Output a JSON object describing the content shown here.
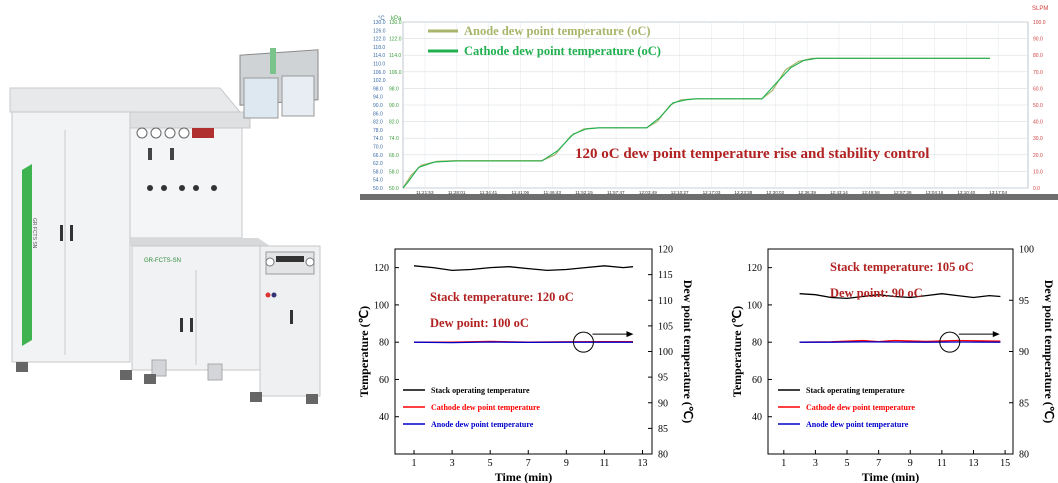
{
  "machine": {
    "brand_front": "GR-FCTS-SN",
    "brand_side": "GR FCTS SN"
  },
  "chart_data": [
    {
      "type": "line",
      "title": "120 oC dew point temperature rise and stability control",
      "left_axis_unit_1": "°C",
      "left_axis_unit_2": "kPa",
      "right_axis_unit": "SLPM",
      "left_ticks": [
        "50.0",
        "54.0",
        "58.0",
        "62.0",
        "66.0",
        "70.0",
        "74.0",
        "78.0",
        "82.0",
        "86.0",
        "90.0",
        "94.0",
        "98.0",
        "102.0",
        "106.0",
        "110.0",
        "114.0",
        "118.0",
        "122.0",
        "126.0",
        "130.0"
      ],
      "left_ticks2": [
        "50.0",
        "58.0",
        "66.0",
        "74.0",
        "82.0",
        "90.0",
        "98.0",
        "106.0",
        "114.0",
        "122.0",
        "130.0"
      ],
      "right_ticks": [
        "0.0",
        "10.0",
        "20.0",
        "30.0",
        "40.0",
        "50.0",
        "60.0",
        "70.0",
        "80.0",
        "90.0",
        "100.0"
      ],
      "x_ticks": [
        "11:21:53",
        "11:28:01",
        "11:34:41",
        "11:41:06",
        "11:46:43",
        "11:52:15",
        "11:57:47",
        "12:03:49",
        "12:10:27",
        "12:17:03",
        "12:23:38",
        "12:30:02",
        "12:36:39",
        "12:43:14",
        "12:49:58",
        "12:57:36",
        "13:04:16",
        "13:10:40",
        "13:17:04"
      ],
      "ylim": [
        50,
        130
      ],
      "series": [
        {
          "name": "Anode dew point temperature (oC)",
          "color": "#a7b66a",
          "points": [
            [
              0,
              50
            ],
            [
              0.3,
              56
            ],
            [
              0.7,
              61
            ],
            [
              1.3,
              62.8
            ],
            [
              2,
              63.2
            ],
            [
              5.3,
              63.2
            ],
            [
              5.8,
              66
            ],
            [
              6.4,
              75
            ],
            [
              6.9,
              78.5
            ],
            [
              7.4,
              79
            ],
            [
              9.3,
              79
            ],
            [
              9.7,
              82
            ],
            [
              10.2,
              90
            ],
            [
              10.6,
              92.5
            ],
            [
              11.1,
              93
            ],
            [
              13.7,
              93
            ],
            [
              14.1,
              97
            ],
            [
              14.6,
              107
            ],
            [
              15.1,
              111
            ],
            [
              15.6,
              112.5
            ],
            [
              22.4,
              112.5
            ]
          ]
        },
        {
          "name": "Cathode dew point temperature (oC)",
          "color": "#20b050",
          "points": [
            [
              0,
              50
            ],
            [
              0.2,
              53
            ],
            [
              0.6,
              60
            ],
            [
              1.2,
              62.5
            ],
            [
              2,
              63
            ],
            [
              5.3,
              63
            ],
            [
              5.9,
              68
            ],
            [
              6.5,
              76
            ],
            [
              7.0,
              78.5
            ],
            [
              7.5,
              79
            ],
            [
              9.3,
              79
            ],
            [
              9.8,
              84
            ],
            [
              10.3,
              91
            ],
            [
              10.8,
              92.5
            ],
            [
              11.2,
              93
            ],
            [
              13.7,
              93
            ],
            [
              14.2,
              100
            ],
            [
              14.8,
              108
            ],
            [
              15.3,
              111.5
            ],
            [
              15.8,
              112.5
            ],
            [
              22.4,
              112.5
            ]
          ]
        }
      ]
    },
    {
      "type": "line",
      "xlabel": "Time (min)",
      "ylabel": "Temperature (℃)",
      "y2label": "Dew point temperature (℃)",
      "xlim": [
        0,
        13.5
      ],
      "ylim": [
        20,
        130
      ],
      "y2lim": [
        80,
        120
      ],
      "x_ticks": [
        "1",
        "3",
        "5",
        "7",
        "9",
        "11",
        "13"
      ],
      "y_ticks": [
        "40",
        "60",
        "80",
        "100",
        "120"
      ],
      "y2_ticks": [
        "80",
        "85",
        "90",
        "95",
        "100",
        "105",
        "110",
        "115",
        "120"
      ],
      "annotations": [
        "Stack temperature: 120 oC",
        "Dew point: 100 oC"
      ],
      "series": [
        {
          "name": "Stack operating temperature",
          "color": "#000000",
          "points": [
            [
              1,
              121
            ],
            [
              2,
              120
            ],
            [
              3,
              118.5
            ],
            [
              4,
              119
            ],
            [
              5,
              120
            ],
            [
              6,
              120.5
            ],
            [
              7,
              119.5
            ],
            [
              8,
              118.5
            ],
            [
              9,
              119
            ],
            [
              10,
              120
            ],
            [
              11,
              121
            ],
            [
              12,
              120
            ],
            [
              12.5,
              120.5
            ]
          ]
        },
        {
          "name": "Cathode dew point temperature",
          "color": "#ff0000",
          "points": [
            [
              1,
              80
            ],
            [
              3,
              80
            ],
            [
              5,
              80.4
            ],
            [
              7,
              80
            ],
            [
              9,
              80.2
            ],
            [
              11,
              80.3
            ],
            [
              12.5,
              80.3
            ]
          ]
        },
        {
          "name": "Anode dew point temperature",
          "color": "#0000cc",
          "points": [
            [
              1,
              80
            ],
            [
              3,
              79.8
            ],
            [
              5,
              80.1
            ],
            [
              7,
              79.9
            ],
            [
              9,
              80
            ],
            [
              11,
              80
            ],
            [
              12.5,
              80
            ]
          ]
        }
      ]
    },
    {
      "type": "line",
      "xlabel": "Time (min)",
      "ylabel": "Temperature (℃)",
      "y2label": "Dew point temperature (℃)",
      "xlim": [
        0,
        15.5
      ],
      "ylim": [
        20,
        130
      ],
      "y2lim": [
        80,
        100
      ],
      "x_ticks": [
        "1",
        "3",
        "5",
        "7",
        "9",
        "11",
        "13",
        "15"
      ],
      "y_ticks": [
        "40",
        "60",
        "80",
        "100",
        "120"
      ],
      "y2_ticks": [
        "80",
        "85",
        "90",
        "95",
        "100"
      ],
      "annotations": [
        "Stack temperature: 105 oC",
        "Dew point: 90 oC"
      ],
      "series": [
        {
          "name": "Stack operating temperature",
          "color": "#000000",
          "points": [
            [
              2,
              106
            ],
            [
              3,
              105.5
            ],
            [
              4,
              104
            ],
            [
              5,
              103.5
            ],
            [
              6,
              104.5
            ],
            [
              7,
              105.5
            ],
            [
              8,
              104.5
            ],
            [
              9,
              104
            ],
            [
              10,
              105
            ],
            [
              11,
              106
            ],
            [
              12,
              105
            ],
            [
              13,
              104
            ],
            [
              14,
              105
            ],
            [
              14.7,
              104.5
            ]
          ]
        },
        {
          "name": "Cathode dew point temperature",
          "color": "#ff0000",
          "points": [
            [
              2,
              80
            ],
            [
              4,
              80.2
            ],
            [
              6,
              80.9
            ],
            [
              7,
              80.3
            ],
            [
              8,
              80.9
            ],
            [
              10,
              80.4
            ],
            [
              12,
              80.9
            ],
            [
              14.7,
              80.5
            ]
          ]
        },
        {
          "name": "Anode dew point temperature",
          "color": "#0000cc",
          "points": [
            [
              2,
              80
            ],
            [
              4,
              80
            ],
            [
              6,
              80.2
            ],
            [
              8,
              80.1
            ],
            [
              10,
              80
            ],
            [
              12,
              80.1
            ],
            [
              14.7,
              80
            ]
          ]
        }
      ]
    }
  ]
}
